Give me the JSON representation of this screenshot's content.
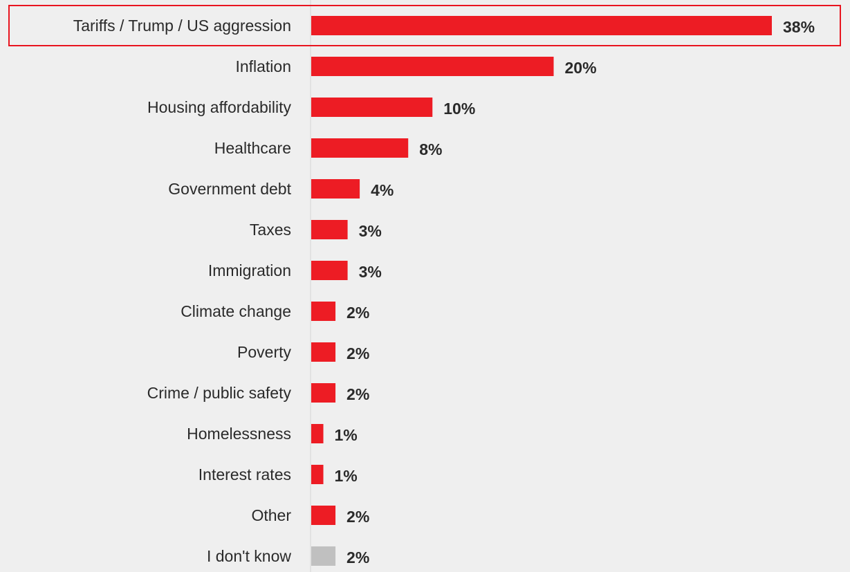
{
  "chart_data": {
    "type": "bar",
    "orientation": "horizontal",
    "categories": [
      "Tariffs / Trump / US aggression",
      "Inflation",
      "Housing affordability",
      "Healthcare",
      "Government debt",
      "Taxes",
      "Immigration",
      "Climate change",
      "Poverty",
      "Crime / public safety",
      "Homelessness",
      "Interest rates",
      "Other",
      "I don't know"
    ],
    "values": [
      38,
      20,
      10,
      8,
      4,
      3,
      3,
      2,
      2,
      2,
      1,
      1,
      2,
      2
    ],
    "value_labels": [
      "38%",
      "20%",
      "10%",
      "8%",
      "4%",
      "3%",
      "3%",
      "2%",
      "2%",
      "2%",
      "1%",
      "1%",
      "2%",
      "2%"
    ],
    "bar_colors": [
      "#ed1c24",
      "#ed1c24",
      "#ed1c24",
      "#ed1c24",
      "#ed1c24",
      "#ed1c24",
      "#ed1c24",
      "#ed1c24",
      "#ed1c24",
      "#ed1c24",
      "#ed1c24",
      "#ed1c24",
      "#ed1c24",
      "#c0c0c0"
    ],
    "highlighted_category": "Tariffs / Trump / US aggression",
    "highlight_color": "#e8141f",
    "background_color": "#efefef",
    "axis_line_color": "#d6d6d6",
    "title": "",
    "xlabel": "",
    "ylabel": "",
    "xlim": [
      0,
      38
    ],
    "grid": false,
    "legend": "none"
  }
}
